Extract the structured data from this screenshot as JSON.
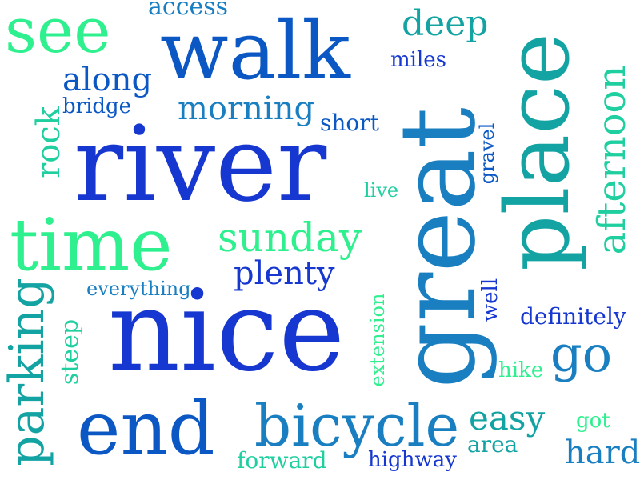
{
  "words": {
    "river": "river",
    "nice": "nice",
    "great": "great",
    "walk": "walk",
    "place": "place",
    "time": "time",
    "end": "end",
    "bicycle": "bicycle",
    "see": "see",
    "parking": "parking",
    "sunday": "sunday",
    "afternoon": "afternoon",
    "go": "go",
    "deep": "deep",
    "morning": "morning",
    "along": "along",
    "plenty": "plenty",
    "rock": "rock",
    "easy": "easy",
    "hard": "hard",
    "access": "access",
    "definitely": "definitely",
    "highway": "highway",
    "forward": "forward",
    "steep": "steep",
    "extension": "extension",
    "short": "short",
    "bridge": "bridge",
    "miles": "miles",
    "everything": "everything",
    "gravel": "gravel",
    "live": "live",
    "well": "well",
    "hike": "hike",
    "area": "area",
    "got": "got"
  },
  "colors": {
    "dark_blue": "#1637d0",
    "blue": "#0b58c4",
    "steel_blue": "#1a7fc1",
    "teal": "#14a3a3",
    "cyan_green": "#1fcfa0",
    "green": "#2ff08f"
  }
}
